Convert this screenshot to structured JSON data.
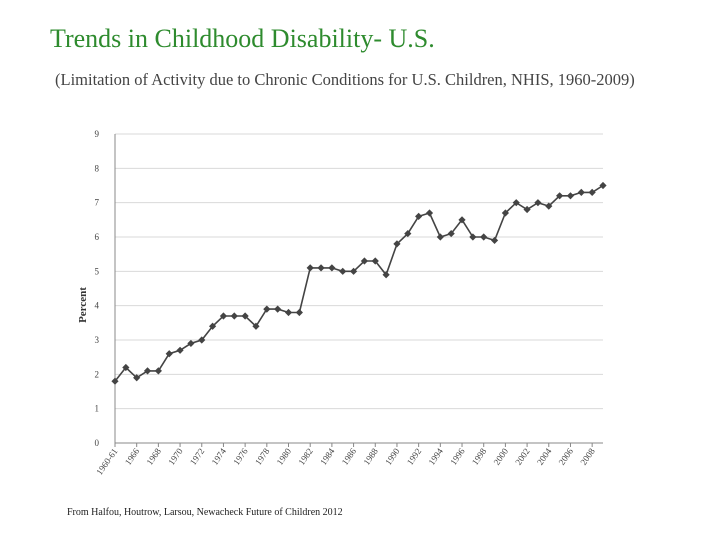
{
  "header": {
    "title": "Trends in Childhood Disability- U.S.",
    "subtitle": "(Limitation of Activity due to Chronic Conditions for U.S. Children, NHIS,  1960-2009)"
  },
  "source": "From Halfou, Houtrow, Larsou, Newacheck Future of Children 2012",
  "colors": {
    "title": "#2e8b2e",
    "line": "#444444",
    "grid": "#d9d9d9",
    "axis": "#888888"
  },
  "chart_data": {
    "type": "line",
    "title": "",
    "ylabel": "Percent",
    "xlabel": "",
    "ylim": [
      0,
      9
    ],
    "yticks": [
      0,
      1,
      2,
      3,
      4,
      5,
      6,
      7,
      8,
      9
    ],
    "grid": true,
    "legend": "none",
    "x_tick_labels": [
      "1960-61",
      "1966",
      "1968",
      "1970",
      "1972",
      "1974",
      "1976",
      "1978",
      "1980",
      "1982",
      "1984",
      "1986",
      "1988",
      "1990",
      "1992",
      "1994",
      "1996",
      "1998",
      "2000",
      "2002",
      "2004",
      "2006",
      "2008"
    ],
    "series": [
      {
        "x": [
          "1960-61",
          "1965",
          "1966",
          "1967",
          "1968",
          "1969",
          "1970",
          "1971",
          "1972",
          "1973",
          "1974",
          "1975",
          "1976",
          "1977",
          "1978",
          "1979",
          "1980",
          "1981",
          "1982",
          "1983",
          "1984",
          "1985",
          "1986",
          "1987",
          "1988",
          "1989",
          "1990",
          "1991",
          "1992",
          "1993",
          "1994",
          "1995",
          "1996",
          "1997",
          "1998",
          "1999",
          "2000",
          "2001",
          "2002",
          "2003",
          "2004",
          "2005",
          "2006",
          "2007",
          "2008",
          "2009"
        ],
        "values": [
          1.8,
          2.2,
          1.9,
          2.1,
          2.1,
          2.6,
          2.7,
          2.9,
          3.0,
          3.4,
          3.7,
          3.7,
          3.7,
          3.4,
          3.9,
          3.9,
          3.8,
          3.8,
          5.1,
          5.1,
          5.1,
          5.0,
          5.0,
          5.3,
          5.3,
          4.9,
          5.8,
          6.1,
          6.6,
          6.7,
          6.0,
          6.1,
          6.5,
          6.0,
          6.0,
          5.9,
          6.7,
          7.0,
          6.8,
          7.0,
          6.9,
          7.2,
          7.2,
          7.3,
          7.3,
          7.5
        ]
      }
    ]
  }
}
